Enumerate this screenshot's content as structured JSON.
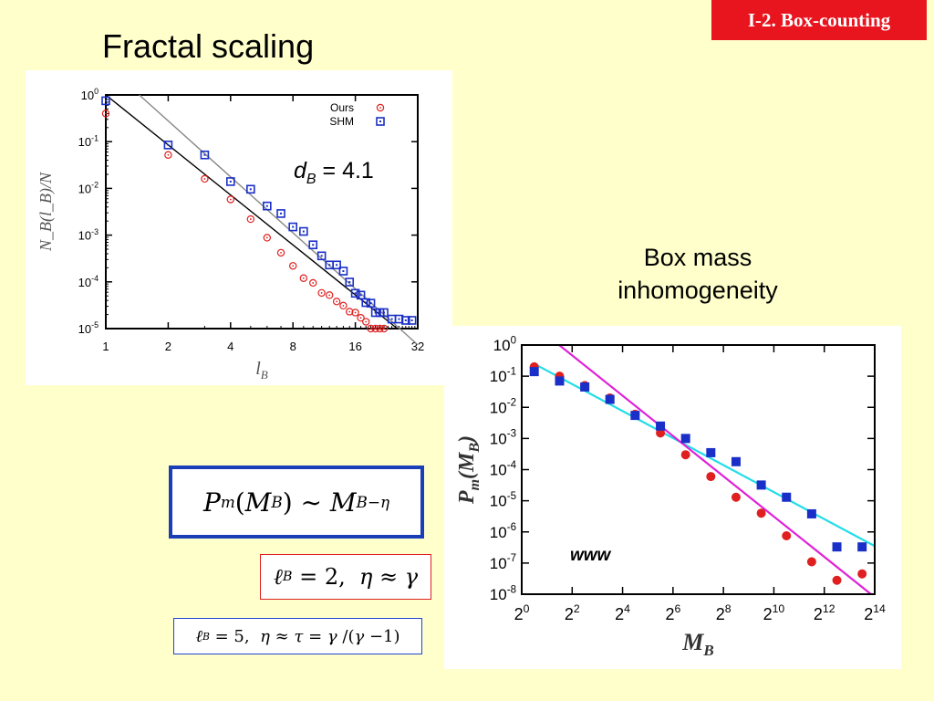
{
  "header": {
    "tag": "I-2. Box-counting",
    "title": "Fractal scaling",
    "box_mass_label_line1": "Box mass",
    "box_mass_label_line2": "inhomogeneity"
  },
  "formulas": {
    "main": "Pm(MB) ~ MB^-η",
    "case_lb2": "ℓB = 2,  η ≈ γ",
    "case_lb5": "ℓB = 5,  η ≈ τ = γ/(γ−1)"
  },
  "colors": {
    "background": "#ffffcc",
    "tag_background": "#e8141e",
    "ours": "#e02020",
    "shm": "#1a2fc8",
    "fit_cyan": "#22dde8",
    "fit_magenta": "#e020d8",
    "formula_border": "#1a3db8"
  },
  "chart_data": [
    {
      "type": "scatter",
      "xscale": "log2",
      "yscale": "log10",
      "xlabel": "l_B",
      "ylabel": "N_B(l_B)/N",
      "xticks": [
        1,
        2,
        4,
        8,
        16,
        32
      ],
      "xtick_labels": [
        "1",
        "2",
        "4",
        "8",
        "16",
        "32"
      ],
      "yticks": [
        1,
        0.1,
        0.01,
        0.001,
        0.0001,
        1e-05
      ],
      "ytick_labels": [
        [
          "10",
          "0"
        ],
        [
          "10",
          "-1"
        ],
        [
          "10",
          "-2"
        ],
        [
          "10",
          "-3"
        ],
        [
          "10",
          "-4"
        ],
        [
          "10",
          "-5"
        ]
      ],
      "xlim": [
        1,
        32
      ],
      "ylim": [
        1e-05,
        1
      ],
      "annotation": {
        "prefix": "d",
        "sub": "B",
        "suffix": " = 4.1"
      },
      "legend": "top-right",
      "series": [
        {
          "name": "Ours",
          "marker": "circle-dot",
          "color": "#e02020",
          "x": [
            1,
            2,
            3,
            4,
            5,
            6,
            7,
            8,
            9,
            10,
            11,
            12,
            13,
            14,
            15,
            16,
            17,
            18,
            19,
            20,
            21,
            22
          ],
          "y": [
            0.4,
            0.052,
            0.016,
            0.0058,
            0.0022,
            0.00088,
            0.00042,
            0.00022,
            0.00012,
            9.5e-05,
            5.8e-05,
            5.2e-05,
            3.8e-05,
            3.1e-05,
            2.3e-05,
            2.2e-05,
            1.7e-05,
            1.4e-05,
            1e-05,
            1e-05,
            1e-05,
            1e-05
          ]
        },
        {
          "name": "SHM",
          "marker": "square-dot",
          "color": "#1a2fc8",
          "x": [
            1,
            2,
            3,
            4,
            5,
            6,
            7,
            8,
            9,
            10,
            11,
            12,
            13,
            14,
            15,
            16,
            17,
            18,
            19,
            20,
            21,
            22,
            24,
            26,
            28,
            30
          ],
          "y": [
            0.75,
            0.085,
            0.052,
            0.014,
            0.0096,
            0.0042,
            0.0029,
            0.0015,
            0.0012,
            0.00062,
            0.00036,
            0.00023,
            0.00023,
            0.00017,
            9.9e-05,
            5.7e-05,
            5.2e-05,
            3.6e-05,
            3.5e-05,
            2.2e-05,
            2.2e-05,
            2.2e-05,
            1.6e-05,
            1.6e-05,
            1.5e-05,
            1.5e-05
          ]
        }
      ],
      "fit_lines": [
        {
          "color": "#000000",
          "x": [
            1,
            25.5
          ],
          "y": [
            1,
            1e-05
          ]
        },
        {
          "color": "#888888",
          "x": [
            1.45,
            32
          ],
          "y": [
            1,
            4.5e-06
          ]
        }
      ]
    },
    {
      "type": "scatter",
      "xscale": "log2",
      "yscale": "log10",
      "xlabel": "M_B",
      "ylabel": "P_m(M_B)",
      "xticks": [
        1,
        4,
        16,
        64,
        256,
        1024,
        4096,
        16384
      ],
      "xtick_labels": [
        [
          "2",
          "0"
        ],
        [
          "2",
          "2"
        ],
        [
          "2",
          "4"
        ],
        [
          "2",
          "6"
        ],
        [
          "2",
          "8"
        ],
        [
          "2",
          "10"
        ],
        [
          "2",
          "12"
        ],
        [
          "2",
          "14"
        ]
      ],
      "yticks": [
        1,
        0.1,
        0.01,
        0.001,
        0.0001,
        1e-05,
        1e-06,
        1e-07,
        1e-08
      ],
      "ytick_labels": [
        [
          "10",
          "0"
        ],
        [
          "10",
          "-1"
        ],
        [
          "10",
          "-2"
        ],
        [
          "10",
          "-3"
        ],
        [
          "10",
          "-4"
        ],
        [
          "10",
          "-5"
        ],
        [
          "10",
          "-6"
        ],
        [
          "10",
          "-7"
        ],
        [
          "10",
          "-8"
        ]
      ],
      "xlim": [
        1,
        16384
      ],
      "ylim": [
        1e-08,
        1
      ],
      "annotation": {
        "text": "www"
      },
      "series": [
        {
          "name": "",
          "marker": "circle",
          "color": "#e02020",
          "x": [
            1.41,
            2.83,
            5.66,
            11.3,
            22.6,
            45.3,
            90.5,
            181,
            362,
            724,
            1448,
            2896,
            5793,
            11585
          ],
          "y": [
            0.2,
            0.1,
            0.05,
            0.02,
            0.006,
            0.0015,
            0.0003,
            6e-05,
            1.3e-05,
            4e-06,
            7.5e-07,
            1.1e-07,
            2.8e-08,
            4.5e-08
          ]
        },
        {
          "name": "",
          "marker": "square",
          "color": "#1a2fc8",
          "x": [
            1.41,
            2.83,
            5.66,
            11.3,
            22.6,
            45.3,
            90.5,
            181,
            362,
            724,
            1448,
            2896,
            5793,
            11585
          ],
          "y": [
            0.14,
            0.07,
            0.045,
            0.018,
            0.0055,
            0.0025,
            0.001,
            0.00035,
            0.00018,
            3.2e-05,
            1.3e-05,
            3.8e-06,
            3.3e-07,
            3.3e-07
          ]
        }
      ],
      "fit_lines": [
        {
          "color": "#22dde8",
          "x": [
            1.41,
            16384
          ],
          "y": [
            0.25,
            3.5e-07
          ]
        },
        {
          "color": "#e020d8",
          "x": [
            2.8,
            14800
          ],
          "y": [
            1,
            1e-08
          ]
        }
      ]
    }
  ]
}
